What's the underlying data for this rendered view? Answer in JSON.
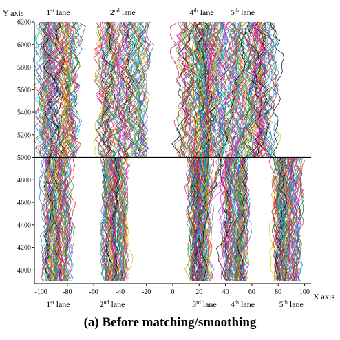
{
  "chart_data": {
    "type": "line",
    "title": "",
    "caption": "(a)  Before matching/smoothing",
    "xlabel": "X axis",
    "ylabel": "Y axis",
    "xlim": [
      -105,
      105
    ],
    "ylim": [
      3880,
      6200
    ],
    "divider_y": 5000,
    "x_ticks": [
      "-100",
      "-80",
      "-60",
      "-40",
      "-20",
      "0",
      "20",
      "40",
      "60",
      "80",
      "100"
    ],
    "x_tick_values": [
      -100,
      -80,
      -60,
      -40,
      -20,
      0,
      20,
      40,
      60,
      80,
      100
    ],
    "y_ticks": [
      "4000",
      "4200",
      "4400",
      "4600",
      "4800",
      "5000",
      "5200",
      "5400",
      "5600",
      "5800",
      "6000",
      "6200"
    ],
    "y_tick_values": [
      4000,
      4200,
      4400,
      4600,
      4800,
      5000,
      5200,
      5400,
      5600,
      5800,
      6000,
      6200
    ],
    "top_lane_labels": [
      {
        "num": "1",
        "sup": "st",
        "word": " lane",
        "x": -87
      },
      {
        "num": "2",
        "sup": "nd",
        "word": " lane",
        "x": -38
      },
      {
        "num": "4",
        "sup": "th",
        "word": " lane",
        "x": 22
      },
      {
        "num": "5",
        "sup": "th",
        "word": " lane",
        "x": 53
      }
    ],
    "bottom_lane_labels": [
      {
        "num": "1",
        "sup": "st",
        "word": " lane",
        "x": -87
      },
      {
        "num": "2",
        "sup": "nd",
        "word": " lane",
        "x": -46
      },
      {
        "num": "3",
        "sup": "rd",
        "word": " lane",
        "x": 24
      },
      {
        "num": "4",
        "sup": "th",
        "word": " lane",
        "x": 53
      },
      {
        "num": "5",
        "sup": "th",
        "word": " lane",
        "x": 90
      }
    ],
    "lanes_below_divider": [
      {
        "name": "1st lane",
        "x_center": -88,
        "half_width": 9
      },
      {
        "name": "2nd lane",
        "x_center": -44,
        "half_width": 8
      },
      {
        "name": "3rd lane",
        "x_center": 20,
        "half_width": 7
      },
      {
        "name": "4th lane",
        "x_center": 47,
        "half_width": 8
      },
      {
        "name": "5th lane",
        "x_center": 87,
        "half_width": 9
      }
    ],
    "lanes_above_divider": [
      {
        "name": "1st lane",
        "x_center": -87,
        "half_width": 11
      },
      {
        "name": "2nd lane",
        "x_center": -38,
        "half_width": 18
      },
      {
        "name": "4th lane",
        "x_center": 22,
        "half_width": 17
      },
      {
        "name": "5th lane",
        "x_center": 60,
        "half_width": 16
      }
    ],
    "trajectories_per_lane": 70,
    "series_colors": [
      "#e41a1c",
      "#377eb8",
      "#4daf4a",
      "#984ea3",
      "#ff7f00",
      "#d4c400",
      "#00bcd4",
      "#e91e63",
      "#1b5e20",
      "#3f51b5",
      "#8d6e63",
      "#000000",
      "#ff00ff",
      "#00c853",
      "#0091ea",
      "#c62828"
    ]
  }
}
